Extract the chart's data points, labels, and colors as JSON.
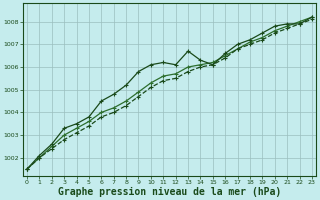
{
  "xlabel": "Graphe pression niveau de la mer (hPa)",
  "xlabel_fontsize": 7,
  "bg_color": "#c5eced",
  "plot_bg_color": "#c5eced",
  "line_color_dark": "#1a4a1a",
  "line_color_mid": "#2d6e2d",
  "grid_color": "#9bbfbf",
  "tick_color": "#1a4a1a",
  "hours": [
    0,
    1,
    2,
    3,
    4,
    5,
    6,
    7,
    8,
    9,
    10,
    11,
    12,
    13,
    14,
    15,
    16,
    17,
    18,
    19,
    20,
    21,
    22,
    23
  ],
  "series1": [
    1001.5,
    1002.1,
    1002.6,
    1003.3,
    1003.5,
    1003.8,
    1004.5,
    1004.8,
    1005.2,
    1005.8,
    1006.1,
    1006.2,
    1006.1,
    1006.7,
    1006.3,
    1006.1,
    1006.6,
    1007.0,
    1007.2,
    1007.5,
    1007.8,
    1007.9,
    1007.9,
    1008.2
  ],
  "series2": [
    1001.5,
    1002.0,
    1002.5,
    1003.0,
    1003.3,
    1003.6,
    1004.0,
    1004.2,
    1004.5,
    1004.9,
    1005.3,
    1005.6,
    1005.7,
    1006.0,
    1006.1,
    1006.2,
    1006.5,
    1006.8,
    1007.1,
    1007.3,
    1007.6,
    1007.8,
    1008.0,
    1008.2
  ],
  "series3": [
    1001.5,
    1002.0,
    1002.4,
    1002.8,
    1003.1,
    1003.4,
    1003.8,
    1004.0,
    1004.3,
    1004.7,
    1005.1,
    1005.4,
    1005.5,
    1005.8,
    1006.0,
    1006.1,
    1006.4,
    1006.8,
    1007.0,
    1007.2,
    1007.5,
    1007.7,
    1007.9,
    1008.1
  ],
  "ylim": [
    1001.2,
    1008.8
  ],
  "yticks": [
    1002,
    1003,
    1004,
    1005,
    1006,
    1007,
    1008
  ],
  "xlim": [
    -0.3,
    23.3
  ],
  "figsize": [
    3.2,
    2.0
  ],
  "dpi": 100
}
